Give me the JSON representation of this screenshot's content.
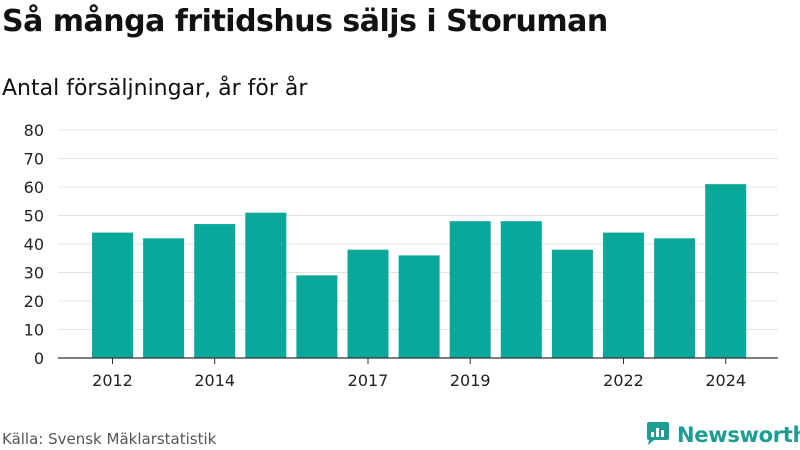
{
  "header": {
    "title": "Så många fritidshus säljs i Storuman",
    "subtitle": "Antal försäljningar, år för år"
  },
  "footer": {
    "source": "Källa: Svensk Mäklarstatistik",
    "brand": "Newsworthy",
    "brand_icon": "newsworthy-logo-icon"
  },
  "colors": {
    "bar": "#0aa89a",
    "grid": "#e4e4e4",
    "axis": "#333333",
    "brand": "#1f9d93"
  },
  "chart_data": {
    "type": "bar",
    "title": "Så många fritidshus säljs i Storuman",
    "subtitle": "Antal försäljningar, år för år",
    "categories": [
      "2012",
      "2013",
      "2014",
      "2015",
      "2016",
      "2017",
      "2018",
      "2019",
      "2020",
      "2021",
      "2022",
      "2023",
      "2024"
    ],
    "values": [
      44,
      42,
      47,
      51,
      29,
      38,
      36,
      48,
      48,
      38,
      44,
      42,
      61
    ],
    "x_tick_labels": [
      "2012",
      "2014",
      "2017",
      "2019",
      "2022",
      "2024"
    ],
    "y_ticks": [
      "0",
      "10",
      "20",
      "30",
      "40",
      "50",
      "60",
      "70",
      "80"
    ],
    "ylim": [
      0,
      80
    ],
    "grid": true,
    "legend": "none"
  }
}
